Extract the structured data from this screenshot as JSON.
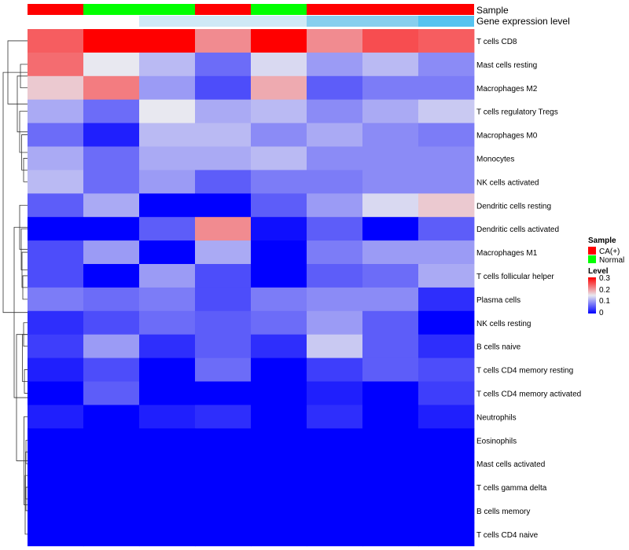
{
  "chart_data": {
    "type": "heatmap",
    "annotation_titles": [
      "Sample",
      "Gene expression level"
    ],
    "sample_annotation": [
      "CA(+)",
      "Normal",
      "Normal",
      "CA(+)",
      "Normal",
      "CA(+)",
      "CA(+)",
      "CA(+)"
    ],
    "expression_annotation": [
      "low",
      "low",
      "mid",
      "mid",
      "mid",
      "high",
      "high",
      "top"
    ],
    "rows": [
      "T cells CD8",
      "Mast cells resting",
      "Macrophages M2",
      "T cells regulatory  Tregs",
      "Macrophages M0",
      "Monocytes",
      "NK cells activated",
      "Dendritic cells resting",
      "Dendritic cells activated",
      "Macrophages M1",
      "T cells follicular helper",
      "Plasma cells",
      "NK cells resting",
      "B cells naive",
      "T cells CD4 memory resting",
      "T cells CD4 memory activated",
      "Neutrophils",
      "Eosinophils",
      "Mast cells activated",
      "T cells gamma delta",
      "B cells memory",
      "T cells CD4 naive"
    ],
    "values": [
      [
        0.24,
        0.3,
        0.3,
        0.21,
        0.3,
        0.21,
        0.25,
        0.24
      ],
      [
        0.23,
        0.15,
        0.12,
        0.07,
        0.14,
        0.1,
        0.12,
        0.09
      ],
      [
        0.17,
        0.22,
        0.1,
        0.05,
        0.19,
        0.06,
        0.08,
        0.08
      ],
      [
        0.11,
        0.07,
        0.15,
        0.11,
        0.12,
        0.09,
        0.11,
        0.13
      ],
      [
        0.07,
        0.02,
        0.12,
        0.12,
        0.09,
        0.11,
        0.09,
        0.08
      ],
      [
        0.11,
        0.07,
        0.11,
        0.11,
        0.12,
        0.09,
        0.09,
        0.09
      ],
      [
        0.12,
        0.07,
        0.1,
        0.06,
        0.08,
        0.08,
        0.09,
        0.09
      ],
      [
        0.06,
        0.11,
        0.0,
        0.0,
        0.06,
        0.1,
        0.14,
        0.17
      ],
      [
        0.0,
        0.0,
        0.06,
        0.21,
        0.01,
        0.06,
        0.0,
        0.06
      ],
      [
        0.05,
        0.1,
        0.0,
        0.11,
        0.0,
        0.08,
        0.1,
        0.1
      ],
      [
        0.05,
        0.0,
        0.1,
        0.05,
        0.0,
        0.06,
        0.07,
        0.11
      ],
      [
        0.08,
        0.07,
        0.08,
        0.05,
        0.08,
        0.09,
        0.09,
        0.03
      ],
      [
        0.03,
        0.05,
        0.07,
        0.06,
        0.07,
        0.1,
        0.06,
        0.0
      ],
      [
        0.04,
        0.1,
        0.03,
        0.06,
        0.03,
        0.13,
        0.06,
        0.03
      ],
      [
        0.02,
        0.05,
        0.0,
        0.07,
        0.0,
        0.04,
        0.06,
        0.05
      ],
      [
        0.0,
        0.06,
        0.0,
        0.0,
        0.0,
        0.02,
        0.0,
        0.04
      ],
      [
        0.02,
        0.0,
        0.02,
        0.03,
        0.0,
        0.03,
        0.0,
        0.02
      ],
      [
        0.0,
        0.0,
        0.0,
        0.0,
        0.0,
        0.0,
        0.0,
        0.0
      ],
      [
        0.0,
        0.0,
        0.0,
        0.0,
        0.0,
        0.0,
        0.0,
        0.0
      ],
      [
        0.0,
        0.0,
        0.0,
        0.0,
        0.0,
        0.0,
        0.0,
        0.0
      ],
      [
        0.0,
        0.0,
        0.0,
        0.0,
        0.0,
        0.0,
        0.0,
        0.0
      ],
      [
        0.0,
        0.0,
        0.0,
        0.0,
        0.0,
        0.0,
        0.0,
        0.0
      ]
    ],
    "color_scale": {
      "low": "#0000ff",
      "mid": "#e8e8f0",
      "high": "#ff0000",
      "min": 0,
      "mid_value": 0.15,
      "max": 0.3
    },
    "legend": {
      "sample_title": "Sample",
      "sample_entries": [
        {
          "label": "CA(+)",
          "color": "#ff0000"
        },
        {
          "label": "Normal",
          "color": "#00ff00"
        }
      ],
      "level_title": "Level",
      "level_ticks": [
        "0.3",
        "0.2",
        "0.1",
        "0"
      ]
    },
    "expression_colors": {
      "low": "#ffffff",
      "mid": "#cfe9f6",
      "high": "#87cfee",
      "top": "#56c3f0"
    },
    "dendrogram": "rows clustered (hierarchical)"
  }
}
